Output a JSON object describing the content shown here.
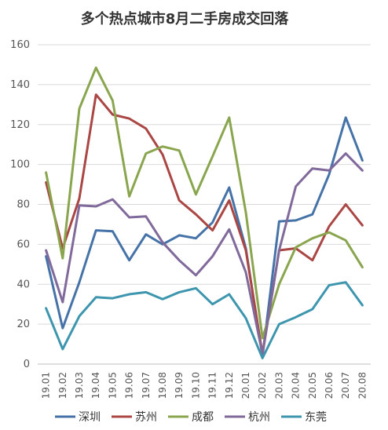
{
  "chart_data": {
    "type": "line",
    "title": "多个热点城市8月二手房成交回落",
    "xlabel": "",
    "ylabel": "",
    "ylim": [
      0,
      160
    ],
    "yticks": [
      0,
      20,
      40,
      60,
      80,
      100,
      120,
      140,
      160
    ],
    "grid": true,
    "legend_position": "bottom",
    "x": [
      "19.01",
      "19.02",
      "19.03",
      "19.04",
      "19.05",
      "19.06",
      "19.07",
      "19.08",
      "19.09",
      "19.10",
      "19.11",
      "19.12",
      "20.01",
      "20.02",
      "20.03",
      "20.04",
      "20.05",
      "20.06",
      "20.07",
      "20.08"
    ],
    "series": [
      {
        "name": "深圳",
        "color": "#4572a7",
        "values": [
          54,
          18,
          41,
          67,
          66.5,
          52,
          65,
          60,
          64.5,
          63,
          71,
          88.5,
          58,
          4,
          71.5,
          72,
          75,
          95,
          123.5,
          102
        ]
      },
      {
        "name": "苏州",
        "color": "#aa4643",
        "values": [
          91,
          58,
          83,
          135,
          125,
          123,
          118,
          105,
          82,
          75,
          67,
          82,
          57,
          5,
          57,
          58,
          52,
          69,
          80,
          69.5
        ]
      },
      {
        "name": "成都",
        "color": "#89a54e",
        "values": [
          96,
          53,
          128,
          148.5,
          132,
          84,
          105.5,
          109,
          107,
          85,
          104,
          123.5,
          76,
          13,
          40,
          58.5,
          63,
          66,
          62,
          48.5
        ]
      },
      {
        "name": "杭州",
        "color": "#80699b",
        "values": [
          57,
          31,
          79.5,
          79,
          82.5,
          73.5,
          74,
          61,
          52,
          44.5,
          54,
          67.5,
          46,
          5,
          57,
          89,
          98,
          97,
          105.5,
          97
        ]
      },
      {
        "name": "东莞",
        "color": "#3d96ae",
        "values": [
          28,
          7.5,
          24,
          33.5,
          33,
          35,
          36,
          32.5,
          36,
          38,
          30,
          35,
          23,
          3,
          20,
          23.5,
          27.5,
          39.5,
          41,
          29.5
        ]
      }
    ]
  }
}
